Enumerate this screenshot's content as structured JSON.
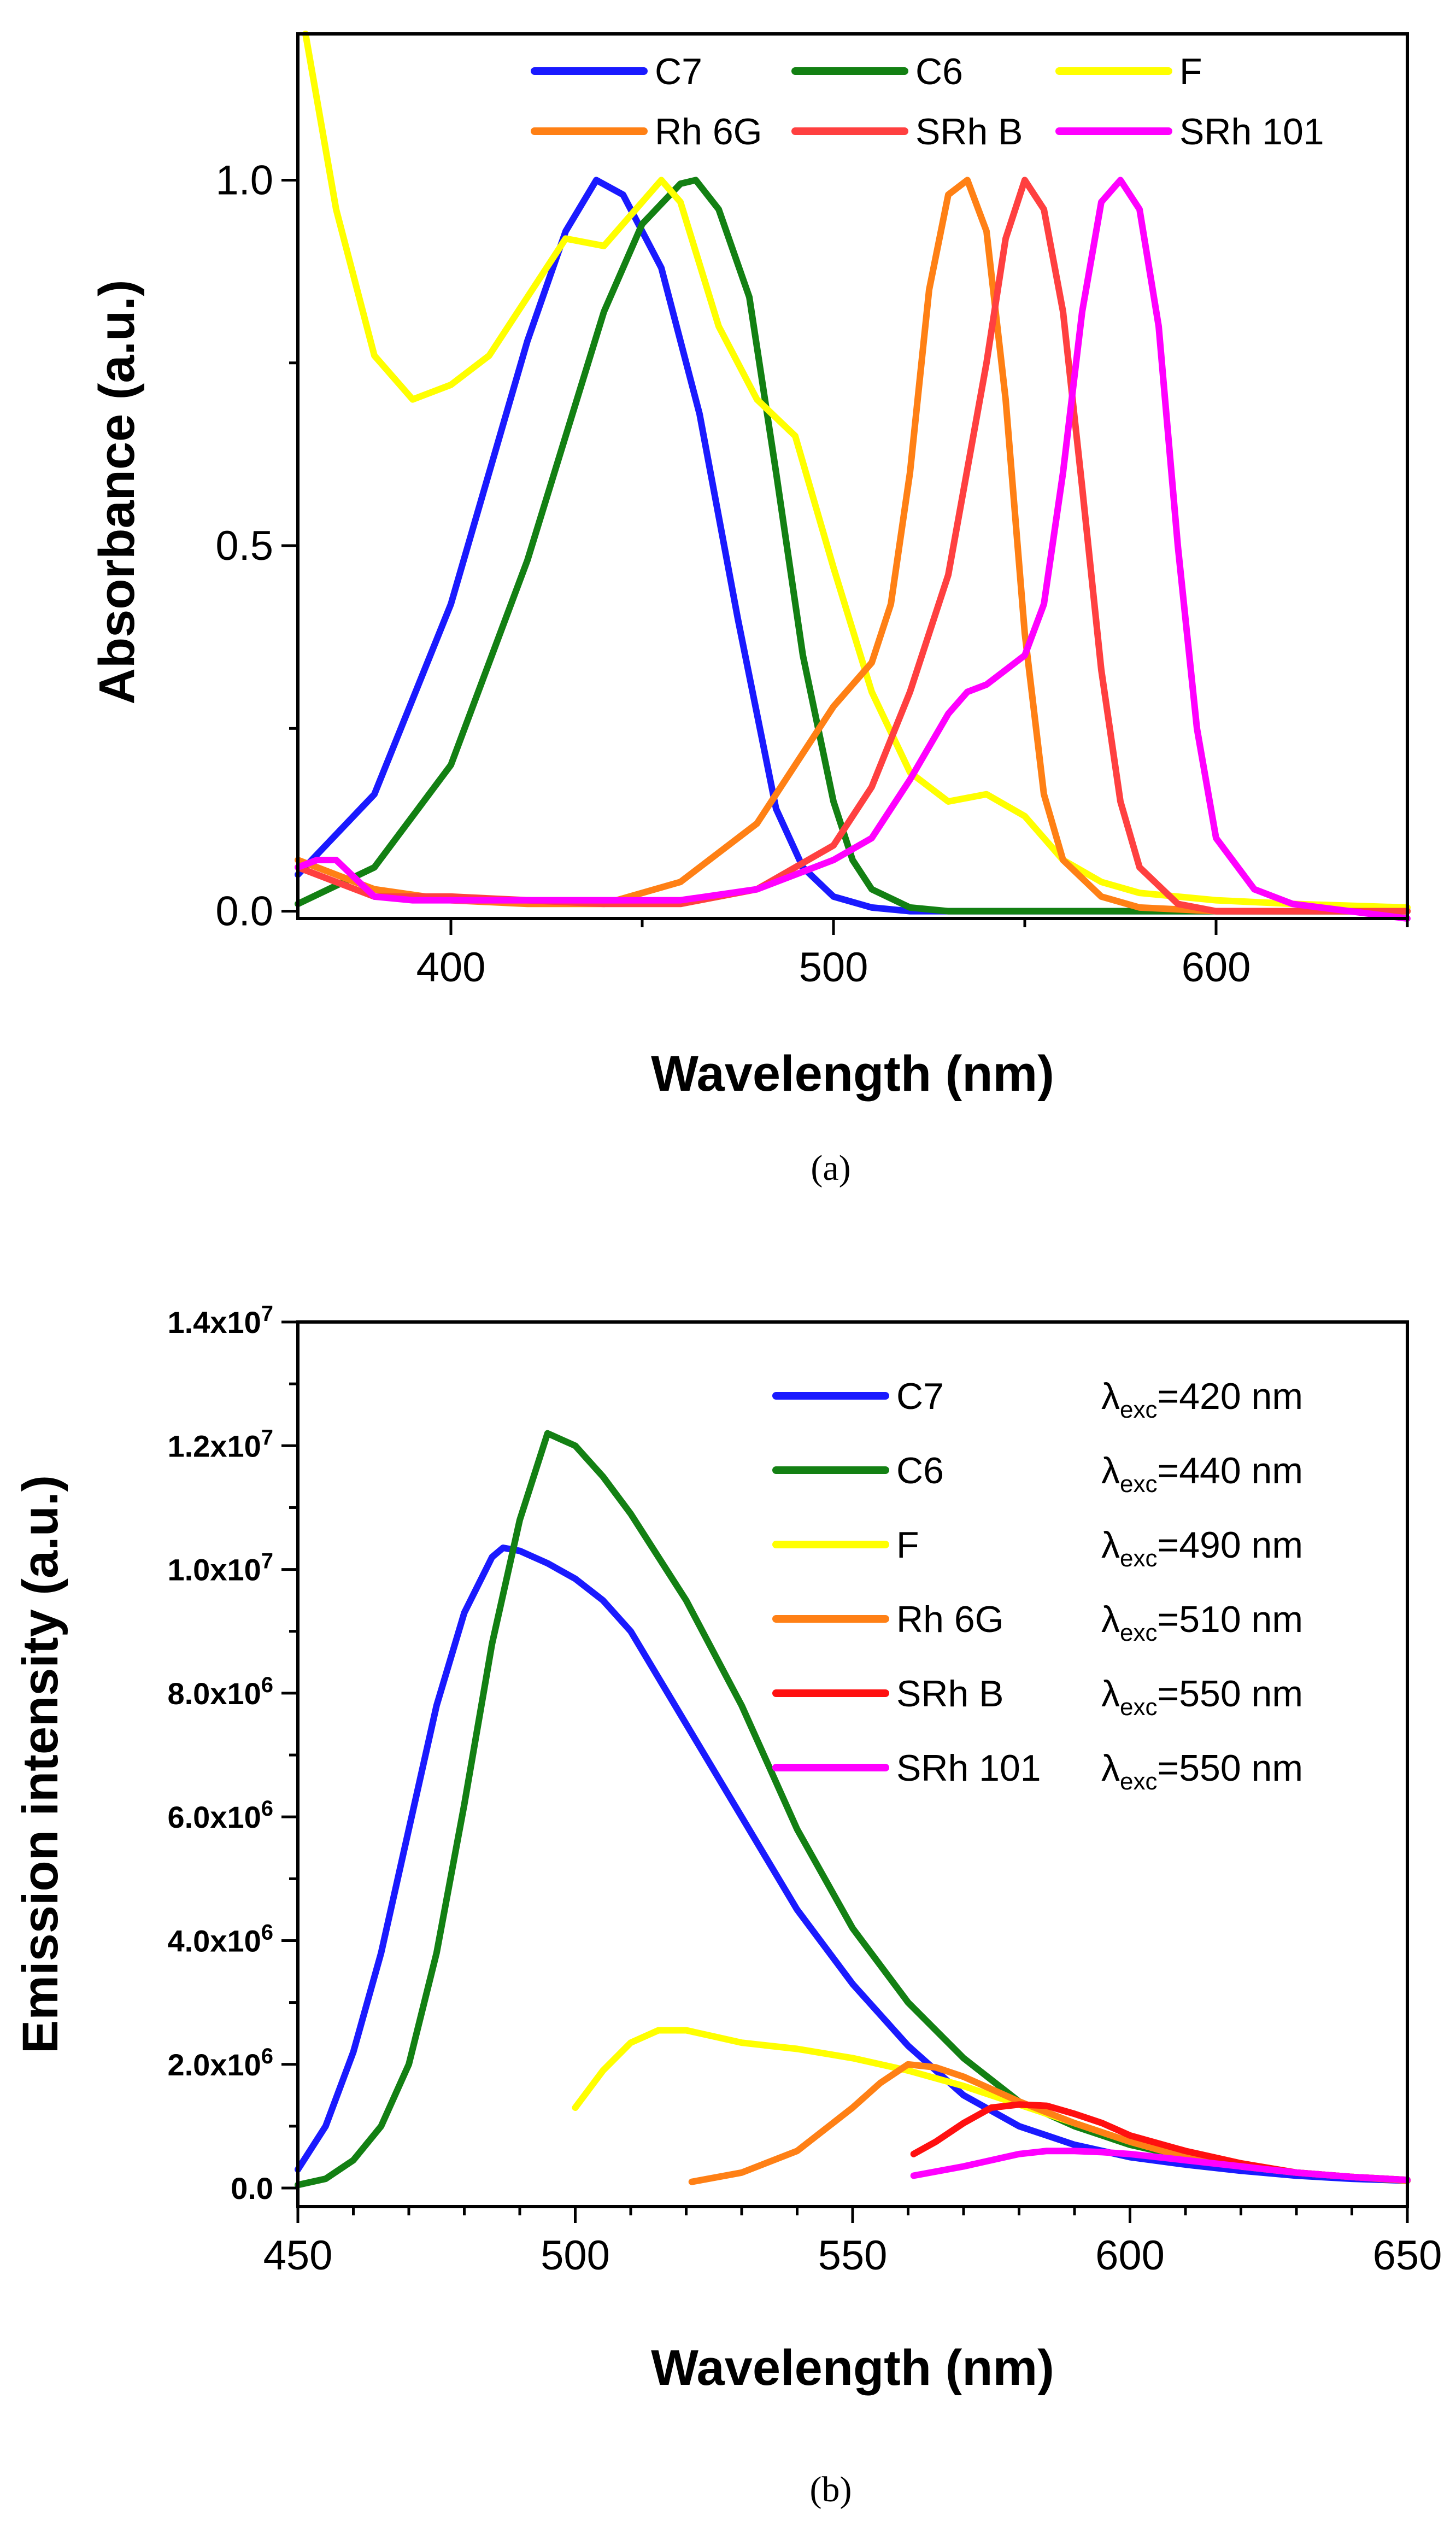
{
  "chart_data": [
    {
      "panel_label": "(a)",
      "type": "line",
      "xlabel": "Wavelength (nm)",
      "ylabel": "Absorbance (a.u.)",
      "xlim": [
        360,
        650
      ],
      "ylim": [
        -0.01,
        1.2
      ],
      "xticks": [
        {
          "value": 400,
          "label": "400"
        },
        {
          "value": 500,
          "label": "500"
        },
        {
          "value": 600,
          "label": "600"
        }
      ],
      "yticks": [
        {
          "value": 0.0,
          "label": "0.0"
        },
        {
          "value": 0.5,
          "label": "0.5"
        },
        {
          "value": 1.0,
          "label": "1.0"
        }
      ],
      "legend_position": "top",
      "series": [
        {
          "name": "C7",
          "color": "#1a1aff",
          "x": [
            360,
            380,
            400,
            420,
            430,
            438,
            445,
            455,
            465,
            475,
            485,
            492,
            500,
            510,
            520,
            540,
            560,
            650
          ],
          "y": [
            0.05,
            0.16,
            0.42,
            0.78,
            0.93,
            1.0,
            0.98,
            0.88,
            0.68,
            0.4,
            0.14,
            0.06,
            0.02,
            0.005,
            0.0,
            0.0,
            0.0,
            0.0
          ]
        },
        {
          "name": "C6",
          "color": "#138013",
          "x": [
            360,
            380,
            400,
            420,
            440,
            450,
            460,
            464,
            470,
            478,
            485,
            492,
            500,
            505,
            510,
            520,
            530,
            650
          ],
          "y": [
            0.01,
            0.06,
            0.2,
            0.48,
            0.82,
            0.94,
            0.995,
            1.0,
            0.96,
            0.84,
            0.6,
            0.35,
            0.15,
            0.07,
            0.03,
            0.005,
            0.0,
            0.0
          ]
        },
        {
          "name": "F",
          "color": "#ffff00",
          "x": [
            362,
            370,
            380,
            390,
            400,
            410,
            420,
            430,
            440,
            450,
            455,
            460,
            470,
            480,
            490,
            500,
            510,
            520,
            530,
            540,
            550,
            560,
            570,
            580,
            600,
            620,
            650
          ],
          "y": [
            1.2,
            0.96,
            0.76,
            0.7,
            0.72,
            0.76,
            0.84,
            0.92,
            0.91,
            0.97,
            1.0,
            0.97,
            0.8,
            0.7,
            0.65,
            0.47,
            0.3,
            0.19,
            0.15,
            0.16,
            0.13,
            0.07,
            0.04,
            0.025,
            0.015,
            0.01,
            0.005
          ]
        },
        {
          "name": "Rh 6G",
          "color": "#ff8015",
          "x": [
            360,
            380,
            400,
            420,
            440,
            460,
            480,
            490,
            500,
            510,
            515,
            520,
            525,
            530,
            535,
            540,
            545,
            550,
            555,
            560,
            570,
            580,
            600,
            650
          ],
          "y": [
            0.07,
            0.03,
            0.015,
            0.01,
            0.01,
            0.04,
            0.12,
            0.2,
            0.28,
            0.34,
            0.42,
            0.6,
            0.85,
            0.98,
            1.0,
            0.93,
            0.7,
            0.38,
            0.16,
            0.07,
            0.02,
            0.005,
            0.0,
            0.0
          ]
        },
        {
          "name": "SRh B",
          "color": "#ff4040",
          "x": [
            360,
            380,
            400,
            420,
            440,
            460,
            480,
            500,
            510,
            520,
            530,
            540,
            545,
            550,
            555,
            560,
            565,
            570,
            575,
            580,
            590,
            600,
            650
          ],
          "y": [
            0.06,
            0.02,
            0.02,
            0.015,
            0.01,
            0.01,
            0.03,
            0.09,
            0.17,
            0.3,
            0.46,
            0.75,
            0.92,
            1.0,
            0.96,
            0.82,
            0.58,
            0.33,
            0.15,
            0.06,
            0.01,
            0.0,
            0.0
          ]
        },
        {
          "name": "SRh 101",
          "color": "#ff00ff",
          "x": [
            360,
            365,
            370,
            375,
            380,
            390,
            400,
            420,
            440,
            460,
            480,
            500,
            510,
            520,
            530,
            535,
            540,
            550,
            555,
            560,
            565,
            570,
            575,
            580,
            585,
            590,
            595,
            600,
            610,
            620,
            650
          ],
          "y": [
            0.06,
            0.07,
            0.07,
            0.045,
            0.02,
            0.015,
            0.015,
            0.015,
            0.015,
            0.015,
            0.03,
            0.07,
            0.1,
            0.18,
            0.27,
            0.3,
            0.31,
            0.35,
            0.42,
            0.6,
            0.82,
            0.97,
            1.0,
            0.96,
            0.8,
            0.5,
            0.25,
            0.1,
            0.03,
            0.01,
            -0.01
          ]
        }
      ]
    },
    {
      "panel_label": "(b)",
      "type": "line",
      "xlabel": "Wavelength (nm)",
      "ylabel": "Emission  intensity (a.u.)",
      "xlim": [
        450,
        650
      ],
      "ylim": [
        -300000,
        14000000
      ],
      "xticks": [
        {
          "value": 450,
          "label": "450"
        },
        {
          "value": 500,
          "label": "500"
        },
        {
          "value": 550,
          "label": "550"
        },
        {
          "value": 600,
          "label": "600"
        },
        {
          "value": 650,
          "label": "650"
        }
      ],
      "yticks": [
        {
          "value": 0,
          "mant": "0.0",
          "exp": ""
        },
        {
          "value": 2000000,
          "mant": "2.0x10",
          "exp": "6"
        },
        {
          "value": 4000000,
          "mant": "4.0x10",
          "exp": "6"
        },
        {
          "value": 6000000,
          "mant": "6.0x10",
          "exp": "6"
        },
        {
          "value": 8000000,
          "mant": "8.0x10",
          "exp": "6"
        },
        {
          "value": 10000000,
          "mant": "1.0x10",
          "exp": "7"
        },
        {
          "value": 12000000,
          "mant": "1.2x10",
          "exp": "7"
        },
        {
          "value": 14000000,
          "mant": "1.4x10",
          "exp": "7"
        }
      ],
      "legend_position": "top-right",
      "series": [
        {
          "name": "C7",
          "excitation": "=420 nm",
          "color": "#1a1aff",
          "x": [
            450,
            455,
            460,
            465,
            470,
            475,
            480,
            485,
            487,
            490,
            495,
            500,
            505,
            510,
            520,
            530,
            540,
            550,
            560,
            570,
            580,
            590,
            600,
            610,
            620,
            630,
            640,
            650
          ],
          "y": [
            300000,
            1000000,
            2200000,
            3800000,
            5800000,
            7800000,
            9300000,
            10200000,
            10350000,
            10300000,
            10100000,
            9850000,
            9500000,
            9000000,
            7500000,
            6000000,
            4500000,
            3300000,
            2300000,
            1500000,
            1000000,
            700000,
            500000,
            380000,
            280000,
            200000,
            150000,
            120000
          ]
        },
        {
          "name": "C6",
          "excitation": "=440 nm",
          "color": "#138013",
          "x": [
            450,
            455,
            460,
            465,
            470,
            475,
            480,
            485,
            490,
            495,
            500,
            505,
            510,
            520,
            530,
            540,
            550,
            560,
            570,
            580,
            590,
            600,
            610,
            620,
            630,
            640,
            650
          ],
          "y": [
            50000,
            150000,
            450000,
            1000000,
            2000000,
            3800000,
            6200000,
            8800000,
            10800000,
            12200000,
            12000000,
            11500000,
            10900000,
            9500000,
            7800000,
            5800000,
            4200000,
            3000000,
            2100000,
            1400000,
            1000000,
            700000,
            500000,
            350000,
            250000,
            180000,
            130000
          ]
        },
        {
          "name": "F",
          "excitation": "=490 nm",
          "color": "#ffff00",
          "x": [
            500,
            505,
            510,
            515,
            520,
            525,
            530,
            540,
            550,
            560,
            570,
            580,
            590,
            600,
            610,
            620,
            630,
            640,
            650
          ],
          "y": [
            1300000,
            1900000,
            2350000,
            2550000,
            2550000,
            2450000,
            2350000,
            2250000,
            2100000,
            1900000,
            1650000,
            1350000,
            1050000,
            750000,
            500000,
            350000,
            250000,
            180000,
            130000
          ]
        },
        {
          "name": "Rh 6G",
          "excitation": "=510 nm",
          "color": "#ff8015",
          "x": [
            521,
            530,
            540,
            550,
            555,
            560,
            565,
            570,
            580,
            590,
            600,
            610,
            620,
            630,
            640,
            650
          ],
          "y": [
            100000,
            250000,
            600000,
            1300000,
            1700000,
            2000000,
            1950000,
            1800000,
            1400000,
            1050000,
            750000,
            500000,
            350000,
            250000,
            180000,
            120000
          ]
        },
        {
          "name": "SRh B",
          "excitation": "=550 nm",
          "color": "#ff1010",
          "x": [
            561,
            565,
            570,
            575,
            580,
            585,
            590,
            595,
            600,
            610,
            620,
            630,
            640,
            650
          ],
          "y": [
            550000,
            750000,
            1050000,
            1300000,
            1350000,
            1330000,
            1200000,
            1050000,
            850000,
            600000,
            400000,
            250000,
            180000,
            130000
          ]
        },
        {
          "name": "SRh 101",
          "excitation": "=550 nm",
          "color": "#ff00ff",
          "x": [
            561,
            570,
            580,
            585,
            590,
            595,
            600,
            610,
            620,
            630,
            640,
            650
          ],
          "y": [
            200000,
            350000,
            550000,
            600000,
            600000,
            580000,
            550000,
            450000,
            350000,
            250000,
            180000,
            130000
          ]
        }
      ]
    }
  ]
}
